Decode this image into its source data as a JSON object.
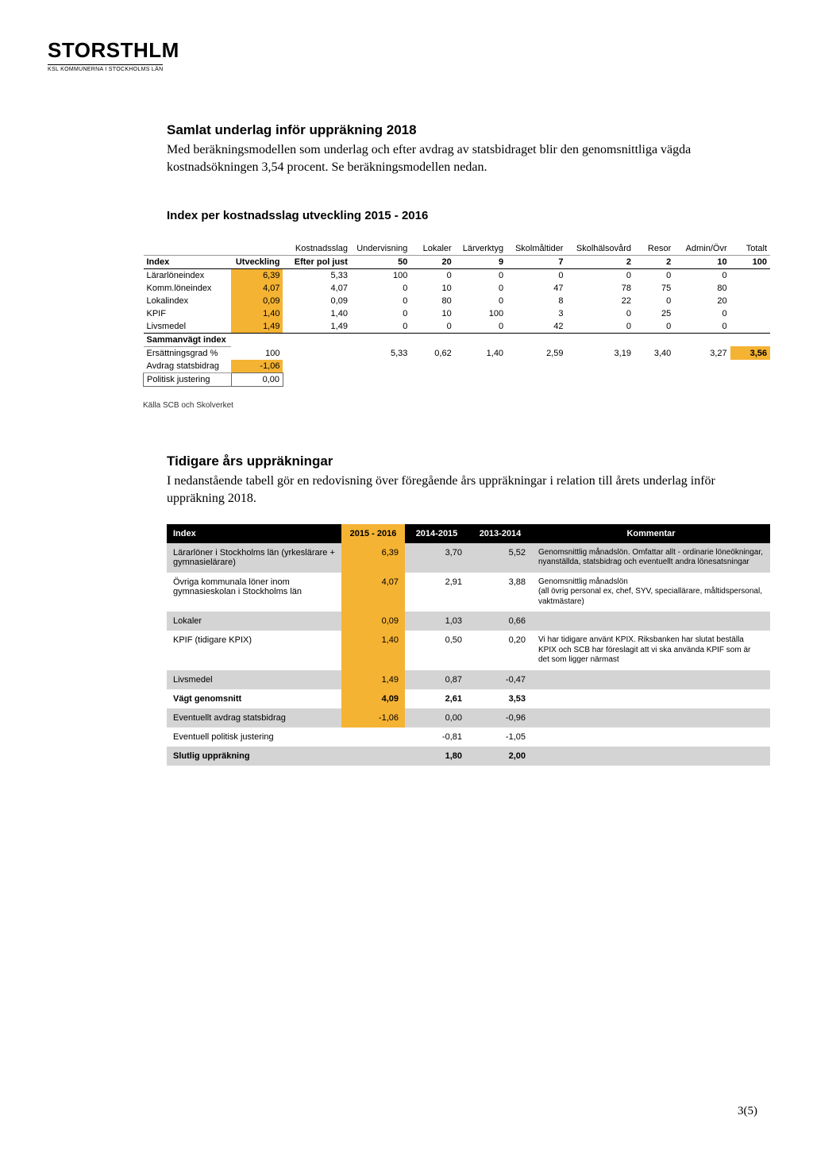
{
  "logo": {
    "main": "STORSTHLM",
    "sub": "KSL KOMMUNERNA I STOCKHOLMS LÄN"
  },
  "section1": {
    "title": "Samlat underlag inför uppräkning 2018",
    "body": "Med beräkningsmodellen som underlag och efter avdrag av statsbidraget blir den genomsnittliga vägda kostnadsökningen 3,54 procent. Se beräkningsmodellen nedan."
  },
  "table1": {
    "title": "Index per kostnadsslag utveckling 2015 - 2016",
    "headers": {
      "top": [
        "",
        "",
        "Kostnadsslag",
        "Undervisning",
        "Lokaler",
        "Lärverktyg",
        "Skolmåltider",
        "Skolhälsovård",
        "Resor",
        "Admin/Övr",
        "Totalt"
      ],
      "sub": [
        "Index",
        "Utveckling",
        "Efter pol just",
        "50",
        "20",
        "9",
        "7",
        "2",
        "2",
        "10",
        "100"
      ]
    },
    "rows": [
      {
        "label": "Lärarlöneindex",
        "utv": "6,39",
        "hl": true,
        "cells": [
          "5,33",
          "100",
          "0",
          "0",
          "0",
          "0",
          "0",
          "0",
          ""
        ]
      },
      {
        "label": "Komm.löneindex",
        "utv": "4,07",
        "hl": true,
        "cells": [
          "4,07",
          "0",
          "10",
          "0",
          "47",
          "78",
          "75",
          "80",
          ""
        ]
      },
      {
        "label": "Lokalindex",
        "utv": "0,09",
        "hl": true,
        "cells": [
          "0,09",
          "0",
          "80",
          "0",
          "8",
          "22",
          "0",
          "20",
          ""
        ]
      },
      {
        "label": "KPIF",
        "utv": "1,40",
        "hl": true,
        "cells": [
          "1,40",
          "0",
          "10",
          "100",
          "3",
          "0",
          "25",
          "0",
          ""
        ]
      },
      {
        "label": "Livsmedel",
        "utv": "1,49",
        "hl": true,
        "cells": [
          "1,49",
          "0",
          "0",
          "0",
          "42",
          "0",
          "0",
          "0",
          ""
        ]
      }
    ],
    "samman": "Sammanvägt index",
    "ers": {
      "label": "Ersättningsgrad %",
      "utv": "100",
      "cells": [
        "",
        "5,33",
        "0,62",
        "1,40",
        "2,59",
        "3,19",
        "3,40",
        "3,27",
        "3,56"
      ]
    },
    "avdrag": {
      "label": "Avdrag statsbidrag",
      "utv": "-1,06"
    },
    "politisk": {
      "label": "Politisk justering",
      "utv": "0,00"
    },
    "source": "Källa SCB och Skolverket"
  },
  "section2": {
    "title": "Tidigare års uppräkningar",
    "body": "I nedanstående tabell gör en redovisning över föregående års uppräkningar i relation till årets underlag inför uppräkning 2018."
  },
  "table2": {
    "headers": [
      "Index",
      "2015 - 2016",
      "2014-2015",
      "2013-2014",
      "Kommentar"
    ],
    "rows": [
      {
        "gray": true,
        "label": "Lärarlöner i Stockholms län (yrkeslärare + gymnasielärare)",
        "c1": "6,39",
        "c2": "3,70",
        "c3": "5,52",
        "k": "Genomsnittlig månadslön. Omfattar allt - ordinarie löneökningar, nyanställda, statsbidrag och eventuellt andra lönesatsningar"
      },
      {
        "gray": false,
        "label": "Övriga kommunala löner inom gymnasieskolan i Stockholms län",
        "c1": "4,07",
        "c2": "2,91",
        "c3": "3,88",
        "k": "Genomsnittlig månadslön\n(all övrig personal ex, chef, SYV, speciallärare, måltidspersonal, vaktmästare)"
      },
      {
        "gray": true,
        "label": "Lokaler",
        "c1": "0,09",
        "c2": "1,03",
        "c3": "0,66",
        "k": ""
      },
      {
        "gray": false,
        "label": "KPIF (tidigare KPIX)",
        "c1": "1,40",
        "c2": "0,50",
        "c3": "0,20",
        "k": "Vi har tidigare använt KPIX. Riksbanken har slutat beställa KPIX och SCB har föreslagit att vi ska använda KPIF som är det som ligger närmast"
      },
      {
        "gray": true,
        "label": "Livsmedel",
        "c1": "1,49",
        "c2": "0,87",
        "c3": "-0,47",
        "k": ""
      },
      {
        "gray": false,
        "bold": true,
        "label": "Vägt genomsnitt",
        "c1": "4,09",
        "c2": "2,61",
        "c3": "3,53",
        "k": ""
      },
      {
        "gray": true,
        "label": "Eventuellt avdrag statsbidrag",
        "c1": "-1,06",
        "c2": "0,00",
        "c3": "-0,96",
        "k": ""
      },
      {
        "gray": false,
        "label": "Eventuell politisk justering",
        "c1": "",
        "c2": "-0,81",
        "c3": "-1,05",
        "k": ""
      },
      {
        "gray": true,
        "bold": true,
        "label": "Slutlig uppräkning",
        "c1": "",
        "c2": "1,80",
        "c3": "2,00",
        "k": ""
      }
    ]
  },
  "page_num": "3(5)"
}
